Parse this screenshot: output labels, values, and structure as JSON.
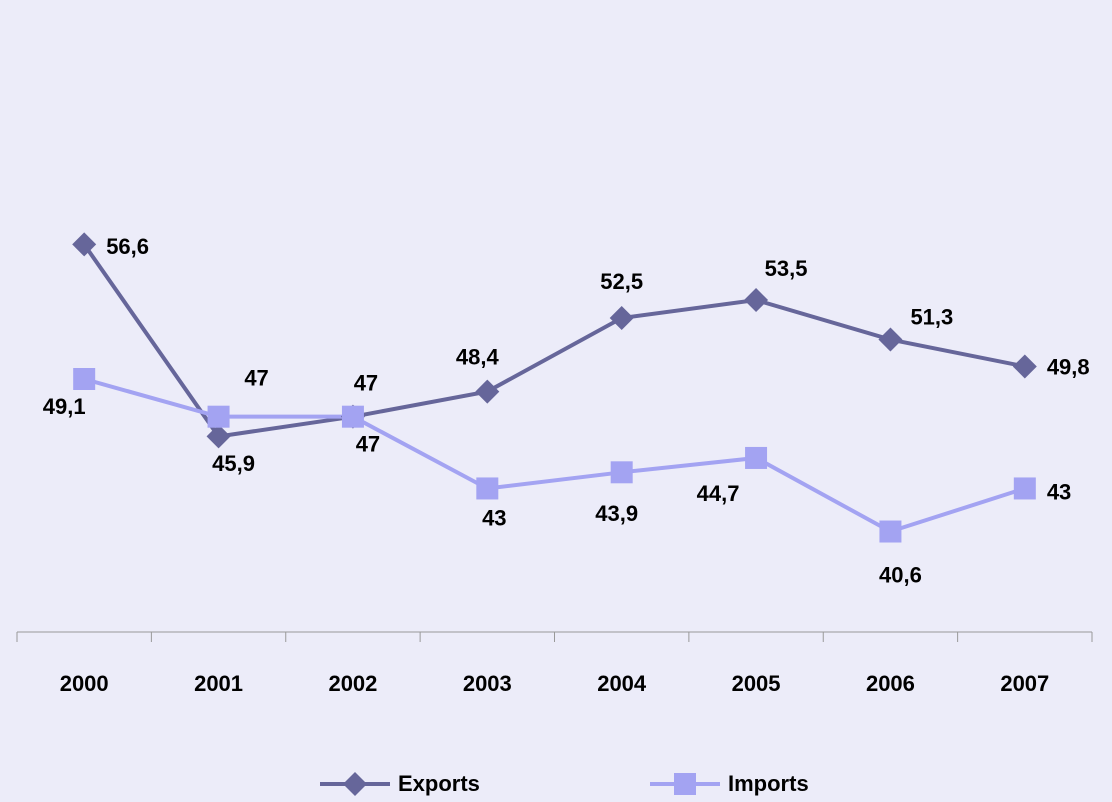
{
  "chart_data": {
    "type": "line",
    "categories": [
      "2000",
      "2001",
      "2002",
      "2003",
      "2004",
      "2005",
      "2006",
      "2007"
    ],
    "series": [
      {
        "name": "Exports",
        "color": "#66669a",
        "marker": "diamond",
        "values": [
          56.6,
          45.9,
          47,
          48.4,
          52.5,
          53.5,
          51.3,
          49.8
        ],
        "value_labels": [
          "56,6",
          "45,9",
          "47",
          "48,4",
          "52,5",
          "53,5",
          "51,3",
          "49,8"
        ]
      },
      {
        "name": "Imports",
        "color": "#a3a3f2",
        "marker": "square",
        "values": [
          49.1,
          47,
          47,
          43,
          43.9,
          44.7,
          40.6,
          43
        ],
        "value_labels": [
          "49,1",
          "47",
          "47",
          "43",
          "43,9",
          "44,7",
          "40,6",
          "43"
        ]
      }
    ],
    "ylim": [
      35,
      70
    ],
    "legend": "bottom"
  }
}
